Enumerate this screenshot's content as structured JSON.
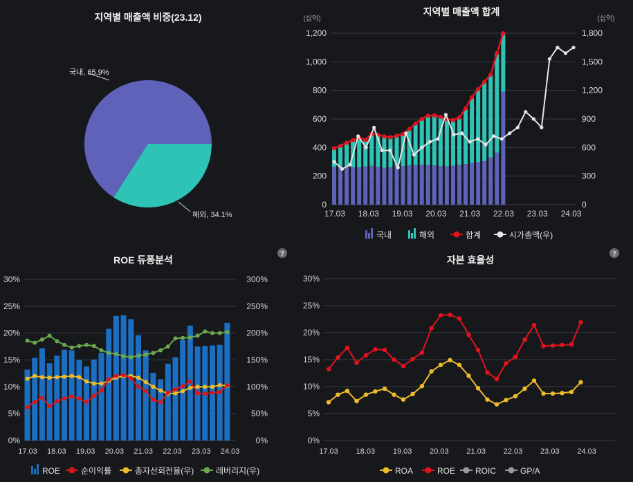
{
  "colors": {
    "domestic": "#5f62b9",
    "overseas": "#2dc4b6",
    "total": "#e1131d",
    "mcap": "#e6e6e6",
    "roe_bar": "#1c6ec0",
    "margin": "#d8171c",
    "turnover": "#eebc2a",
    "leverage": "#6aa84f",
    "roa": "#eebc2a",
    "roe_line": "#e1131d",
    "gray": "#9a9a9a"
  },
  "chart_data": [
    {
      "type": "pie",
      "title": "지역별 매출액 비중(23.12)",
      "slices": [
        {
          "name": "국내",
          "value": 65.9,
          "label": "국내, 65.9%"
        },
        {
          "name": "해외",
          "value": 34.1,
          "label": "해외, 34.1%"
        }
      ]
    },
    {
      "type": "bar",
      "title": "지역별 매출액 합계",
      "unit_left": "(십억)",
      "unit_right": "(십억)",
      "ylim": [
        0,
        1200
      ],
      "y2lim": [
        0,
        1800
      ],
      "yticks": [
        "0",
        "200",
        "400",
        "600",
        "800",
        "1,000",
        "1,200"
      ],
      "y2ticks": [
        "0",
        "300",
        "600",
        "900",
        "1,200",
        "1,500",
        "1,800"
      ],
      "xticks": [
        "17.03",
        "18.03",
        "19.03",
        "20.03",
        "21.03",
        "22.03",
        "23.03",
        "24.03"
      ],
      "n": 28,
      "domestic": [
        265,
        262,
        268,
        262,
        260,
        268,
        272,
        265,
        258,
        262,
        268,
        270,
        275,
        278,
        280,
        278,
        275,
        270,
        268,
        272,
        280,
        285,
        292,
        298,
        305,
        330,
        365,
        790
      ],
      "overseas": [
        130,
        150,
        165,
        190,
        210,
        185,
        225,
        225,
        220,
        210,
        215,
        225,
        255,
        290,
        320,
        345,
        350,
        345,
        330,
        320,
        330,
        390,
        460,
        510,
        555,
        580,
        695,
        410
      ],
      "total": [
        395,
        412,
        433,
        452,
        470,
        453,
        497,
        490,
        478,
        472,
        483,
        495,
        530,
        568,
        600,
        623,
        625,
        615,
        598,
        592,
        610,
        675,
        752,
        808,
        860,
        910,
        1060,
        1200
      ],
      "mcap": [
        null,
        null,
        null,
        null,
        null,
        null,
        null,
        null,
        null,
        null,
        null,
        null,
        null,
        null,
        null,
        null,
        null,
        null,
        null,
        null,
        null,
        null,
        null,
        null,
        null,
        null,
        null,
        null,
        null,
        null
      ],
      "mcap_values": [
        450,
        375,
        420,
        720,
        600,
        810,
        570,
        570,
        390,
        750,
        525,
        600,
        660,
        690,
        945,
        735,
        750,
        660,
        690,
        630,
        720,
        690,
        750,
        810,
        975,
        900,
        810,
        1530,
        1650,
        1590,
        1650
      ],
      "legend": [
        "국내",
        "해외",
        "합계",
        "시가총액(우)"
      ]
    },
    {
      "type": "bar",
      "title": "ROE 듀퐁분석",
      "ylim": [
        0,
        30
      ],
      "y2lim": [
        0,
        300
      ],
      "yticks": [
        "0%",
        "5%",
        "10%",
        "15%",
        "20%",
        "25%",
        "30%"
      ],
      "y2ticks": [
        "0%",
        "50%",
        "100%",
        "150%",
        "200%",
        "250%",
        "300%"
      ],
      "xticks": [
        "17.03",
        "18.03",
        "19.03",
        "20.03",
        "21.03",
        "22.03",
        "23.03",
        "24.03"
      ],
      "roe": [
        13.2,
        15.4,
        17.2,
        14.4,
        15.8,
        16.9,
        16.8,
        15.0,
        13.8,
        15.1,
        16.3,
        20.8,
        23.2,
        23.3,
        22.6,
        19.6,
        16.8,
        12.6,
        11.4,
        14.3,
        15.5,
        18.7,
        21.4,
        17.5,
        17.6,
        17.7,
        17.8,
        21.9
      ],
      "net_margin": [
        6.2,
        7.2,
        8.0,
        6.4,
        7.3,
        7.8,
        8.2,
        7.8,
        7.2,
        8.3,
        9.3,
        11.4,
        12.0,
        12.2,
        11.6,
        10.0,
        9.2,
        7.6,
        7.1,
        8.9,
        9.5,
        10.1,
        11.0,
        8.8,
        8.7,
        8.9,
        9.0,
        10.3
      ],
      "turnover": [
        115,
        120,
        118,
        117,
        118,
        119,
        120,
        118,
        110,
        106,
        106,
        111,
        117,
        120,
        120,
        117,
        109,
        100,
        93,
        87,
        88,
        92,
        98,
        100,
        100,
        100,
        103,
        102
      ],
      "leverage": [
        186,
        182,
        188,
        195,
        185,
        178,
        173,
        176,
        178,
        176,
        168,
        163,
        161,
        157,
        155,
        158,
        160,
        163,
        168,
        175,
        190,
        191,
        192,
        195,
        203,
        200,
        200,
        202
      ],
      "legend": [
        "ROE",
        "순이익률",
        "총자산회전율(우)",
        "레버리지(우)"
      ]
    },
    {
      "type": "line",
      "title": "자본 효율성",
      "ylim": [
        0,
        30
      ],
      "yticks": [
        "0%",
        "5%",
        "10%",
        "15%",
        "20%",
        "25%",
        "30%"
      ],
      "xticks": [
        "17.03",
        "18.03",
        "19.03",
        "20.03",
        "21.03",
        "22.03",
        "23.03",
        "24.03"
      ],
      "roa": [
        7.1,
        8.5,
        9.2,
        7.3,
        8.5,
        9.1,
        9.6,
        8.5,
        7.6,
        8.6,
        10.1,
        12.8,
        14.0,
        14.9,
        14.0,
        12.0,
        9.7,
        7.6,
        6.7,
        7.5,
        8.2,
        9.6,
        11.1,
        8.7,
        8.7,
        8.8,
        9.0,
        10.8
      ],
      "roe": [
        13.2,
        15.4,
        17.2,
        14.4,
        15.8,
        16.9,
        16.8,
        15.0,
        13.8,
        15.1,
        16.3,
        20.8,
        23.2,
        23.3,
        22.6,
        19.6,
        16.8,
        12.6,
        11.4,
        14.3,
        15.5,
        18.7,
        21.4,
        17.5,
        17.6,
        17.7,
        17.8,
        21.9
      ],
      "legend": [
        "ROA",
        "ROE",
        "ROIC",
        "GP/A"
      ]
    }
  ],
  "help": "?"
}
